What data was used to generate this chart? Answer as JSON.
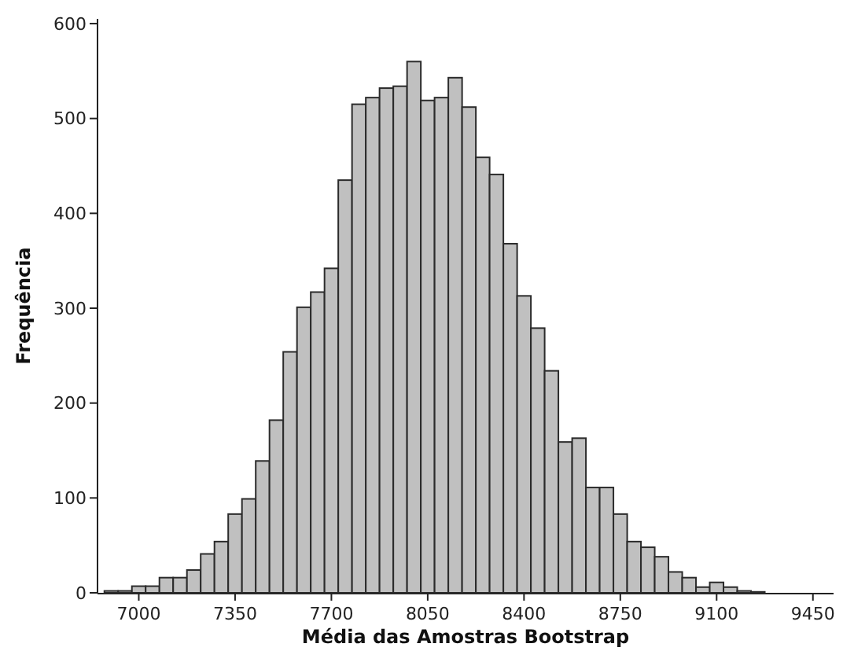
{
  "chart_data": {
    "type": "histogram",
    "xlabel": "Média das Amostras Bootstrap",
    "ylabel": "Frequência",
    "bins": [
      6875,
      6925,
      6975,
      7025,
      7075,
      7125,
      7175,
      7225,
      7275,
      7325,
      7375,
      7425,
      7475,
      7525,
      7575,
      7625,
      7675,
      7725,
      7775,
      7825,
      7875,
      7925,
      7975,
      8025,
      8075,
      8125,
      8175,
      8225,
      8275,
      8325,
      8375,
      8425,
      8475,
      8525,
      8575,
      8625,
      8675,
      8725,
      8775,
      8825,
      8875,
      8925,
      8975,
      9025,
      9075,
      9125,
      9175,
      9225,
      9275
    ],
    "values": [
      2,
      2,
      7,
      7,
      16,
      16,
      24,
      41,
      54,
      83,
      99,
      139,
      182,
      254,
      301,
      317,
      342,
      435,
      515,
      522,
      532,
      534,
      560,
      519,
      522,
      543,
      512,
      459,
      441,
      368,
      313,
      279,
      234,
      159,
      163,
      111,
      111,
      83,
      54,
      48,
      38,
      22,
      16,
      6,
      11,
      6,
      2,
      1
    ],
    "color": "#c0c0c0",
    "xlim": [
      6850,
      9525
    ],
    "xticks": [
      7000,
      7350,
      7700,
      8050,
      8400,
      8750,
      9100,
      9450
    ],
    "ylim": [
      0,
      605
    ],
    "yticks": [
      0,
      100,
      200,
      300,
      400,
      500,
      600
    ],
    "grid": false
  }
}
